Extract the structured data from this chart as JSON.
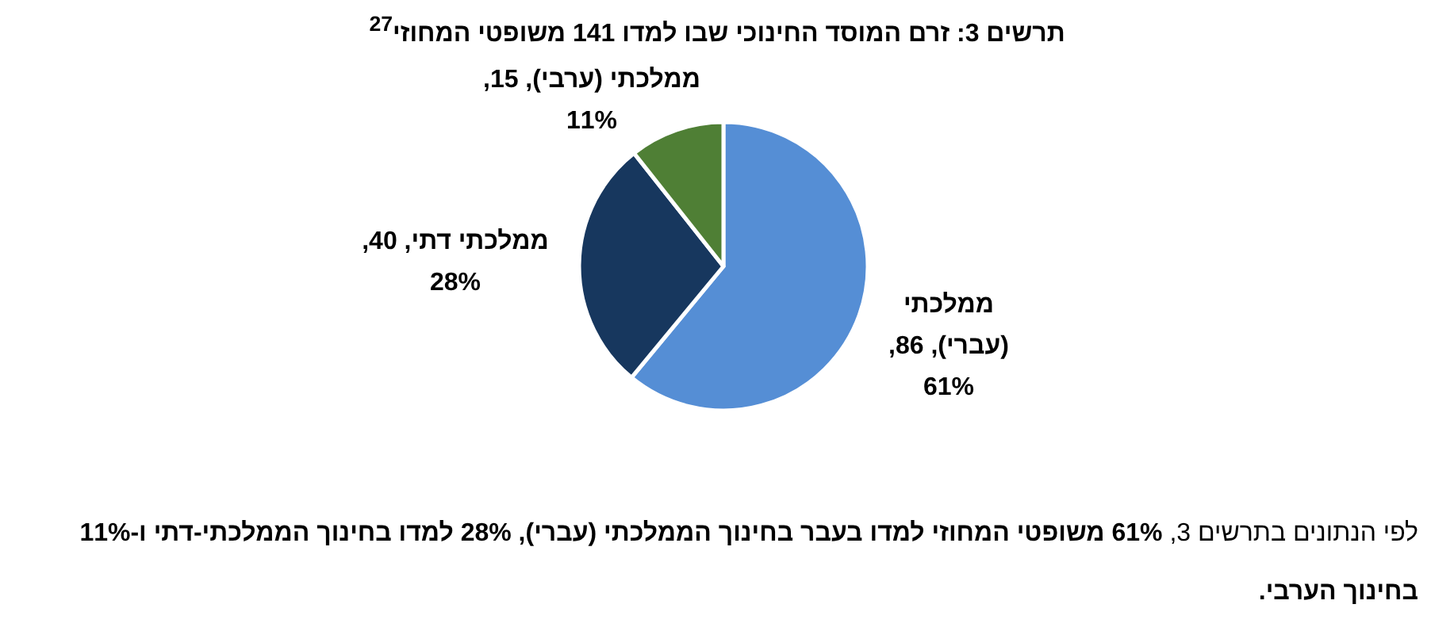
{
  "chart_data": {
    "type": "pie",
    "title": "תרשים 3: זרם המוסד החינוכי שבו למדו 141 משופטי המחוזי$^{27}$",
    "categories": [
      "ממלכתי (עברי)",
      "ממלכתי דתי",
      "ממלכתי (ערבי)"
    ],
    "values": [
      86,
      40,
      15
    ],
    "colors": [
      "#558ed5",
      "#17375e",
      "#4f7f35"
    ],
    "value_labels": [
      "86, 61%",
      "40, 28%",
      "15, 11%"
    ],
    "annotations": [
      "לפי הנתונים בתרשים 3, **61% משופטי המחוזי למדו בעבר בחינוך הממלכתי (עברי), 28% למדו בחינוך הממלכתי-דתי ו-11% בחינוך הערבי.**"
    ]
  }
}
